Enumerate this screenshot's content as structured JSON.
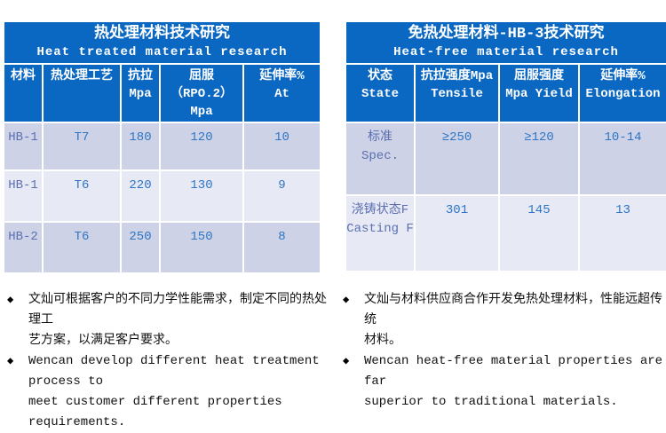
{
  "colors": {
    "header_blue": "#0a67c2",
    "row_dark": "#cdd2e7",
    "row_light": "#e7e9f4",
    "value_text_blue": "#2e75c4",
    "label_text_periwinkle": "#5c6fb0",
    "note_text": "#111111"
  },
  "left_table": {
    "title_zh": "热处理材料技术研究",
    "title_en": "Heat treated material research",
    "headers": [
      "材料",
      "热处理工艺",
      "抗拉\nMpa",
      "屈服\n（RPO.2）\nMpa",
      "延伸率%\nAt"
    ],
    "rows": [
      [
        "HB-1",
        "T7",
        "180",
        "120",
        "10"
      ],
      [
        "HB-1",
        "T6",
        "220",
        "130",
        "9"
      ],
      [
        "HB-2",
        "T6",
        "250",
        "150",
        "8"
      ]
    ]
  },
  "right_table": {
    "title_zh": "免热处理材料-HB-3技术研究",
    "title_en": "Heat-free material research",
    "headers": [
      "状态\nState",
      "抗拉强度Mpa\nTensile",
      "屈服强度\nMpa Yield",
      "延伸率%\nElongation"
    ],
    "rows": [
      [
        "标准\nSpec.",
        "≥250",
        "≥120",
        "10-14"
      ],
      [
        "浇铸状态F\nCasting F",
        "301",
        "145",
        "13"
      ]
    ]
  },
  "notes": {
    "left": [
      {
        "marker": "◆",
        "text": "文灿可根据客户的不同力学性能需求，制定不同的热处理工\n艺方案，以满足客户要求。"
      },
      {
        "marker": "◆",
        "text": "Wencan develop different heat treatment process to\nmeet customer different properties requirements."
      }
    ],
    "right": [
      {
        "marker": "◆",
        "text": "文灿与材料供应商合作开发免热处理材料，性能远超传统\n材料。"
      },
      {
        "marker": "◆",
        "text": "Wencan heat-free material properties are far\nsuperior to traditional materials."
      }
    ]
  }
}
